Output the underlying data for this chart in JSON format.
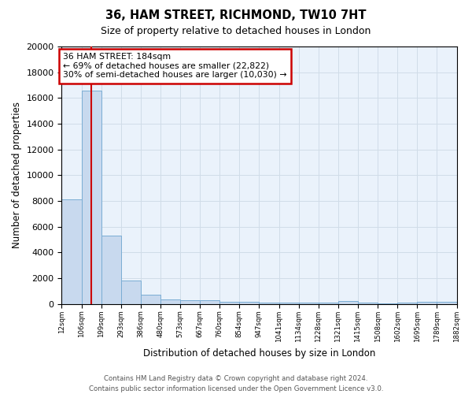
{
  "title1": "36, HAM STREET, RICHMOND, TW10 7HT",
  "title2": "Size of property relative to detached houses in London",
  "xlabel": "Distribution of detached houses by size in London",
  "ylabel": "Number of detached properties",
  "bin_labels": [
    "12sqm",
    "106sqm",
    "199sqm",
    "293sqm",
    "386sqm",
    "480sqm",
    "573sqm",
    "667sqm",
    "760sqm",
    "854sqm",
    "947sqm",
    "1041sqm",
    "1134sqm",
    "1228sqm",
    "1321sqm",
    "1415sqm",
    "1508sqm",
    "1602sqm",
    "1695sqm",
    "1789sqm",
    "1882sqm"
  ],
  "bar_heights": [
    8100,
    16600,
    5300,
    1800,
    700,
    350,
    260,
    260,
    150,
    150,
    120,
    110,
    100,
    90,
    200,
    80,
    70,
    80,
    170,
    160
  ],
  "bar_color": "#c8d9ee",
  "bar_edge_color": "#7aadd4",
  "red_line_x": 1.5,
  "annotation_text": "36 HAM STREET: 184sqm\n← 69% of detached houses are smaller (22,822)\n30% of semi-detached houses are larger (10,030) →",
  "annotation_box_facecolor": "#ffffff",
  "annotation_box_edgecolor": "#cc0000",
  "red_line_color": "#cc0000",
  "grid_color": "#d0dce8",
  "background_color": "#eaf2fb",
  "footer_text": "Contains HM Land Registry data © Crown copyright and database right 2024.\nContains public sector information licensed under the Open Government Licence v3.0.",
  "ylim": [
    0,
    20000
  ],
  "yticks": [
    0,
    2000,
    4000,
    6000,
    8000,
    10000,
    12000,
    14000,
    16000,
    18000,
    20000
  ]
}
